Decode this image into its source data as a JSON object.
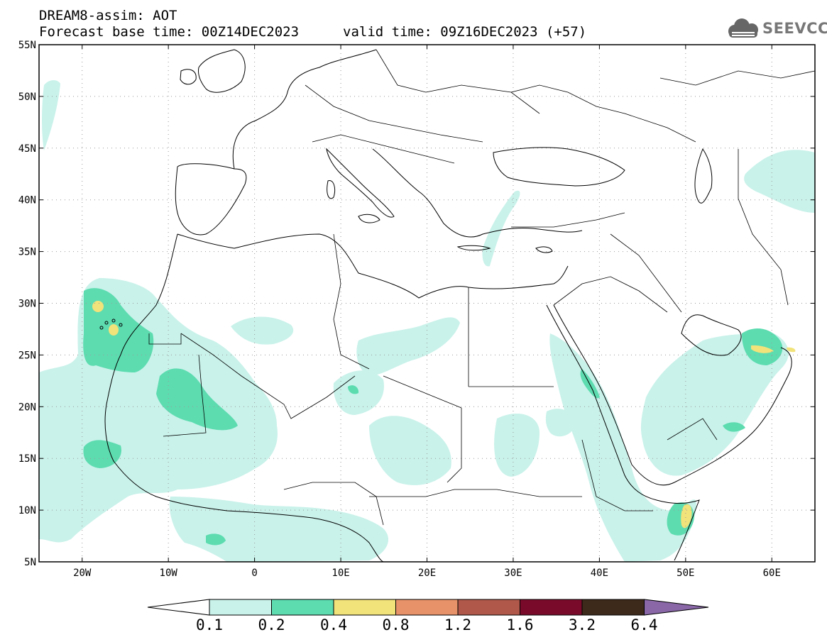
{
  "header": {
    "model_title": "DREAM8-assim: AOT",
    "base_time": "Forecast base time: 00Z14DEC2023",
    "valid_time": "valid time: 09Z16DEC2023 (+57)"
  },
  "logo": {
    "text": "SEEVCCC",
    "icon": "cloud-icon"
  },
  "map": {
    "lat_labels": [
      "55N",
      "50N",
      "45N",
      "40N",
      "35N",
      "30N",
      "25N",
      "20N",
      "15N",
      "10N",
      "5N"
    ],
    "lon_labels": [
      "20W",
      "10W",
      "0",
      "10E",
      "20E",
      "30E",
      "40E",
      "50E",
      "60E"
    ],
    "lat_range": [
      5,
      55
    ],
    "lon_range": [
      -25,
      65
    ],
    "gridlines": true
  },
  "colorbar": {
    "labels": [
      "0.1",
      "0.2",
      "0.4",
      "0.8",
      "1.2",
      "1.6",
      "3.2",
      "6.4"
    ],
    "colors": [
      "#c9f2ea",
      "#5ddcb0",
      "#f2e27a",
      "#e8926a",
      "#b0584a",
      "#7a0a2a",
      "#3d2a1a",
      "#8a68a8"
    ]
  }
}
